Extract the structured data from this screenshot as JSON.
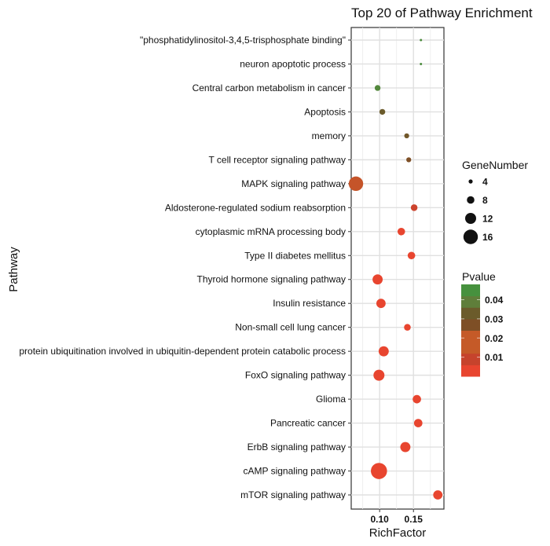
{
  "chart_data": {
    "type": "scatter",
    "title": "Top 20 of Pathway Enrichment",
    "xlabel": "RichFactor",
    "ylabel": "Pathway",
    "xlim": [
      0.058,
      0.195
    ],
    "xticks": [
      0.1,
      0.15
    ],
    "xtick_labels": [
      "0.10",
      "0.15"
    ],
    "grid": true,
    "legend_placement": "right",
    "categories": [
      "\"phosphatidylinositol-3,4,5-trisphosphate binding\"",
      "neuron apoptotic process",
      "Central carbon metabolism in cancer",
      "Apoptosis",
      "memory",
      "T cell receptor signaling pathway",
      "MAPK signaling pathway",
      "Aldosterone-regulated sodium reabsorption",
      "cytoplasmic mRNA processing body",
      "Type II diabetes mellitus",
      "Thyroid hormone signaling pathway",
      "Insulin resistance",
      "Non-small cell lung cancer",
      "protein ubiquitination involved in ubiquitin-dependent protein catabolic process",
      "FoxO signaling pathway",
      "Glioma",
      "Pancreatic cancer",
      "ErbB signaling pathway",
      "cAMP signaling pathway",
      "mTOR signaling pathway"
    ],
    "rich_factor": [
      0.161,
      0.161,
      0.097,
      0.104,
      0.14,
      0.143,
      0.065,
      0.151,
      0.132,
      0.147,
      0.097,
      0.102,
      0.141,
      0.106,
      0.099,
      0.155,
      0.157,
      0.138,
      0.099,
      0.186
    ],
    "gene_number": [
      2,
      2,
      6,
      6,
      5,
      5,
      16,
      7,
      8,
      8,
      11,
      10,
      7,
      11,
      12,
      9,
      9,
      11,
      18,
      10
    ],
    "pvalue": [
      0.046,
      0.046,
      0.044,
      0.032,
      0.03,
      0.026,
      0.018,
      0.011,
      0.004,
      0.003,
      0.003,
      0.003,
      0.003,
      0.003,
      0.003,
      0.002,
      0.002,
      0.002,
      0.002,
      0.002
    ],
    "size_legend": {
      "title": "GeneNumber",
      "values": [
        4,
        8,
        12,
        16
      ],
      "labels": [
        "4",
        "8",
        "12",
        "16"
      ]
    },
    "color_legend": {
      "title": "Pvalue",
      "ticks": [
        0.04,
        0.03,
        0.02,
        0.01
      ],
      "tick_labels": [
        "0.04",
        "0.03",
        "0.02",
        "0.01"
      ],
      "range": [
        0.0,
        0.048
      ],
      "band_colors": [
        "#e8452f",
        "#c6432c",
        "#c55a28",
        "#c55a28",
        "#7e4f26",
        "#6b5b2b",
        "#5f7e3a",
        "#46913e"
      ],
      "low_color": "#e8452f",
      "high_color": "#46913e"
    }
  }
}
